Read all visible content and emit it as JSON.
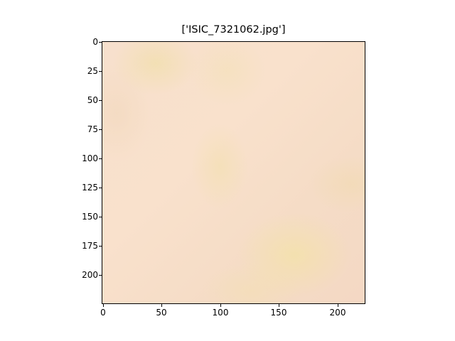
{
  "figure": {
    "title": "['ISIC_7321062.jpg']"
  },
  "y_axis": {
    "ticks": [
      "0",
      "25",
      "50",
      "75",
      "100",
      "125",
      "150",
      "175",
      "200"
    ]
  },
  "x_axis": {
    "ticks": [
      "0",
      "50",
      "100",
      "150",
      "200"
    ]
  },
  "image": {
    "description_colors": {
      "base": "#f7e0cd",
      "highlight": "#f2e4a0"
    }
  }
}
